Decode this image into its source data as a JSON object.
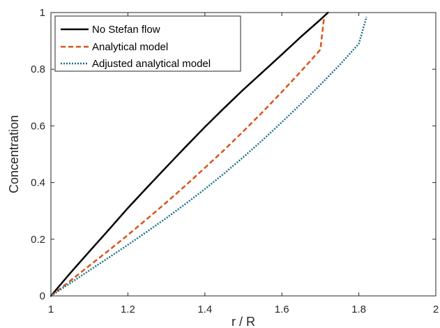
{
  "chart_data": {
    "type": "line",
    "xlabel": "r / R",
    "ylabel": "Concentration",
    "xlim": [
      1,
      2
    ],
    "ylim": [
      0,
      1
    ],
    "x_ticks": [
      1,
      1.2,
      1.4,
      1.6,
      1.8,
      2
    ],
    "x_tick_labels": [
      "1",
      "1.2",
      "1.4",
      "1.6",
      "1.8",
      "2"
    ],
    "y_ticks": [
      0,
      0.2,
      0.4,
      0.6,
      0.8,
      1
    ],
    "y_tick_labels": [
      "0",
      "0.2",
      "0.4",
      "0.6",
      "0.8",
      "1"
    ],
    "grid": false,
    "legend_position": "top-left",
    "series": [
      {
        "name": "No Stefan flow",
        "color": "#000000",
        "style": "solid",
        "x": [
          1.0,
          1.05,
          1.1,
          1.15,
          1.2,
          1.25,
          1.3,
          1.35,
          1.4,
          1.45,
          1.5,
          1.55,
          1.6,
          1.65,
          1.7,
          1.72
        ],
        "y": [
          0.0,
          0.08,
          0.157,
          0.233,
          0.31,
          0.383,
          0.455,
          0.526,
          0.596,
          0.663,
          0.728,
          0.79,
          0.852,
          0.915,
          0.975,
          1.0
        ]
      },
      {
        "name": "Analytical model",
        "color": "#D95319",
        "style": "dashed",
        "x": [
          1.0,
          1.05,
          1.1,
          1.15,
          1.2,
          1.25,
          1.3,
          1.35,
          1.4,
          1.45,
          1.5,
          1.55,
          1.6,
          1.65,
          1.7,
          1.71
        ],
        "y": [
          0.0,
          0.053,
          0.107,
          0.16,
          0.215,
          0.272,
          0.33,
          0.39,
          0.452,
          0.515,
          0.581,
          0.649,
          0.72,
          0.793,
          0.869,
          0.985
        ]
      },
      {
        "name": "Adjusted analytical model",
        "color": "#1B6F8A",
        "style": "dotted",
        "x": [
          1.0,
          1.05,
          1.1,
          1.15,
          1.2,
          1.25,
          1.3,
          1.35,
          1.4,
          1.45,
          1.5,
          1.55,
          1.6,
          1.65,
          1.7,
          1.75,
          1.8,
          1.82
        ],
        "y": [
          0.0,
          0.045,
          0.09,
          0.135,
          0.18,
          0.227,
          0.275,
          0.325,
          0.377,
          0.432,
          0.49,
          0.55,
          0.613,
          0.678,
          0.745,
          0.815,
          0.89,
          0.985
        ]
      }
    ]
  }
}
